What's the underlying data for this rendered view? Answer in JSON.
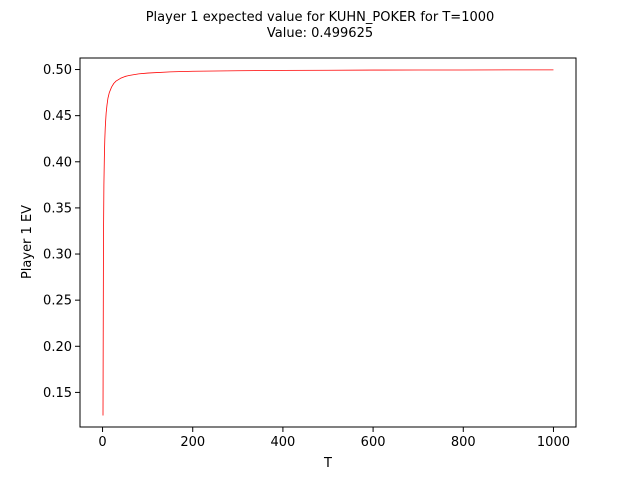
{
  "chart_data": {
    "type": "line",
    "title": "Player 1 expected value for KUHN_POKER for T=1000",
    "subtitle": "Value: 0.499625",
    "xlabel": "T",
    "ylabel": "Player 1 EV",
    "xlim": [
      -50,
      1050
    ],
    "ylim": [
      0.1125,
      0.5125
    ],
    "xticks": [
      0,
      200,
      400,
      600,
      800,
      1000
    ],
    "yticks": [
      0.15,
      0.2,
      0.25,
      0.3,
      0.35,
      0.4,
      0.45,
      0.5
    ],
    "xtick_labels": [
      "0",
      "200",
      "400",
      "600",
      "800",
      "1000"
    ],
    "ytick_labels": [
      "0.15",
      "0.20",
      "0.25",
      "0.30",
      "0.35",
      "0.40",
      "0.45",
      "0.50"
    ],
    "grid": false,
    "legend": "none",
    "series": [
      {
        "color": "#ff0000",
        "x": [
          1,
          2,
          3,
          4,
          5,
          6,
          8,
          10,
          12,
          15,
          20,
          25,
          30,
          40,
          50,
          60,
          80,
          100,
          150,
          200,
          300,
          400,
          500,
          600,
          700,
          800,
          900,
          1000
        ],
        "y": [
          0.125,
          0.31,
          0.375,
          0.405,
          0.424,
          0.437,
          0.453,
          0.462,
          0.469,
          0.475,
          0.481,
          0.485,
          0.4875,
          0.4905,
          0.4925,
          0.4937,
          0.4953,
          0.4962,
          0.4975,
          0.4981,
          0.4987,
          0.4991,
          0.4992,
          0.4994,
          0.4995,
          0.4995,
          0.4996,
          0.4996
        ]
      }
    ]
  }
}
